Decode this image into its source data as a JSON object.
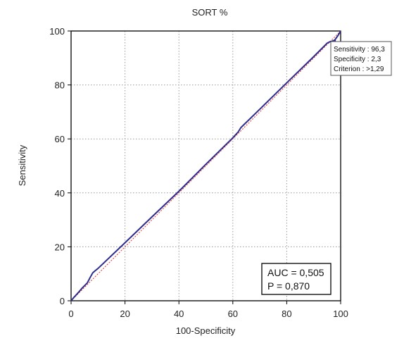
{
  "chart_data": {
    "type": "line",
    "title": "SORT %",
    "xlabel": "100-Specificity",
    "ylabel": "Sensitivity",
    "xlim": [
      0,
      100
    ],
    "ylim": [
      0,
      100
    ],
    "xticks": [
      0,
      20,
      40,
      60,
      80,
      100
    ],
    "yticks": [
      0,
      20,
      40,
      60,
      80,
      100
    ],
    "grid": true,
    "series": [
      {
        "role": "roc-curve",
        "color": "#2c2d8f",
        "x": [
          0,
          1,
          2,
          3,
          4,
          5,
          6,
          7,
          8,
          9,
          10,
          20,
          30,
          40,
          50,
          60,
          61,
          62,
          63,
          70,
          80,
          90,
          95,
          96,
          97,
          97.7,
          98,
          99,
          100
        ],
        "y": [
          0,
          1.2,
          2.3,
          3.4,
          4.6,
          5.6,
          6.6,
          8.5,
          10.3,
          11.2,
          12.0,
          21.5,
          31.1,
          40.6,
          50.6,
          60.4,
          61.5,
          62.6,
          64.2,
          71.0,
          80.8,
          90.5,
          95.5,
          96.0,
          96.3,
          96.3,
          96.9,
          98.3,
          100
        ]
      },
      {
        "role": "reference-diagonal",
        "color": "#e0433a",
        "dashed": true,
        "x": [
          0,
          100
        ],
        "y": [
          0,
          100
        ]
      }
    ],
    "criterion_point": {
      "x": 97.7,
      "y": 96.3
    },
    "tooltip": {
      "lines": [
        "Sensitivity : 96,3",
        "Specificity : 2,3",
        "Criterion : >1,29"
      ]
    },
    "stats": {
      "lines": [
        "AUC = 0,505",
        "P = 0,870"
      ]
    }
  }
}
